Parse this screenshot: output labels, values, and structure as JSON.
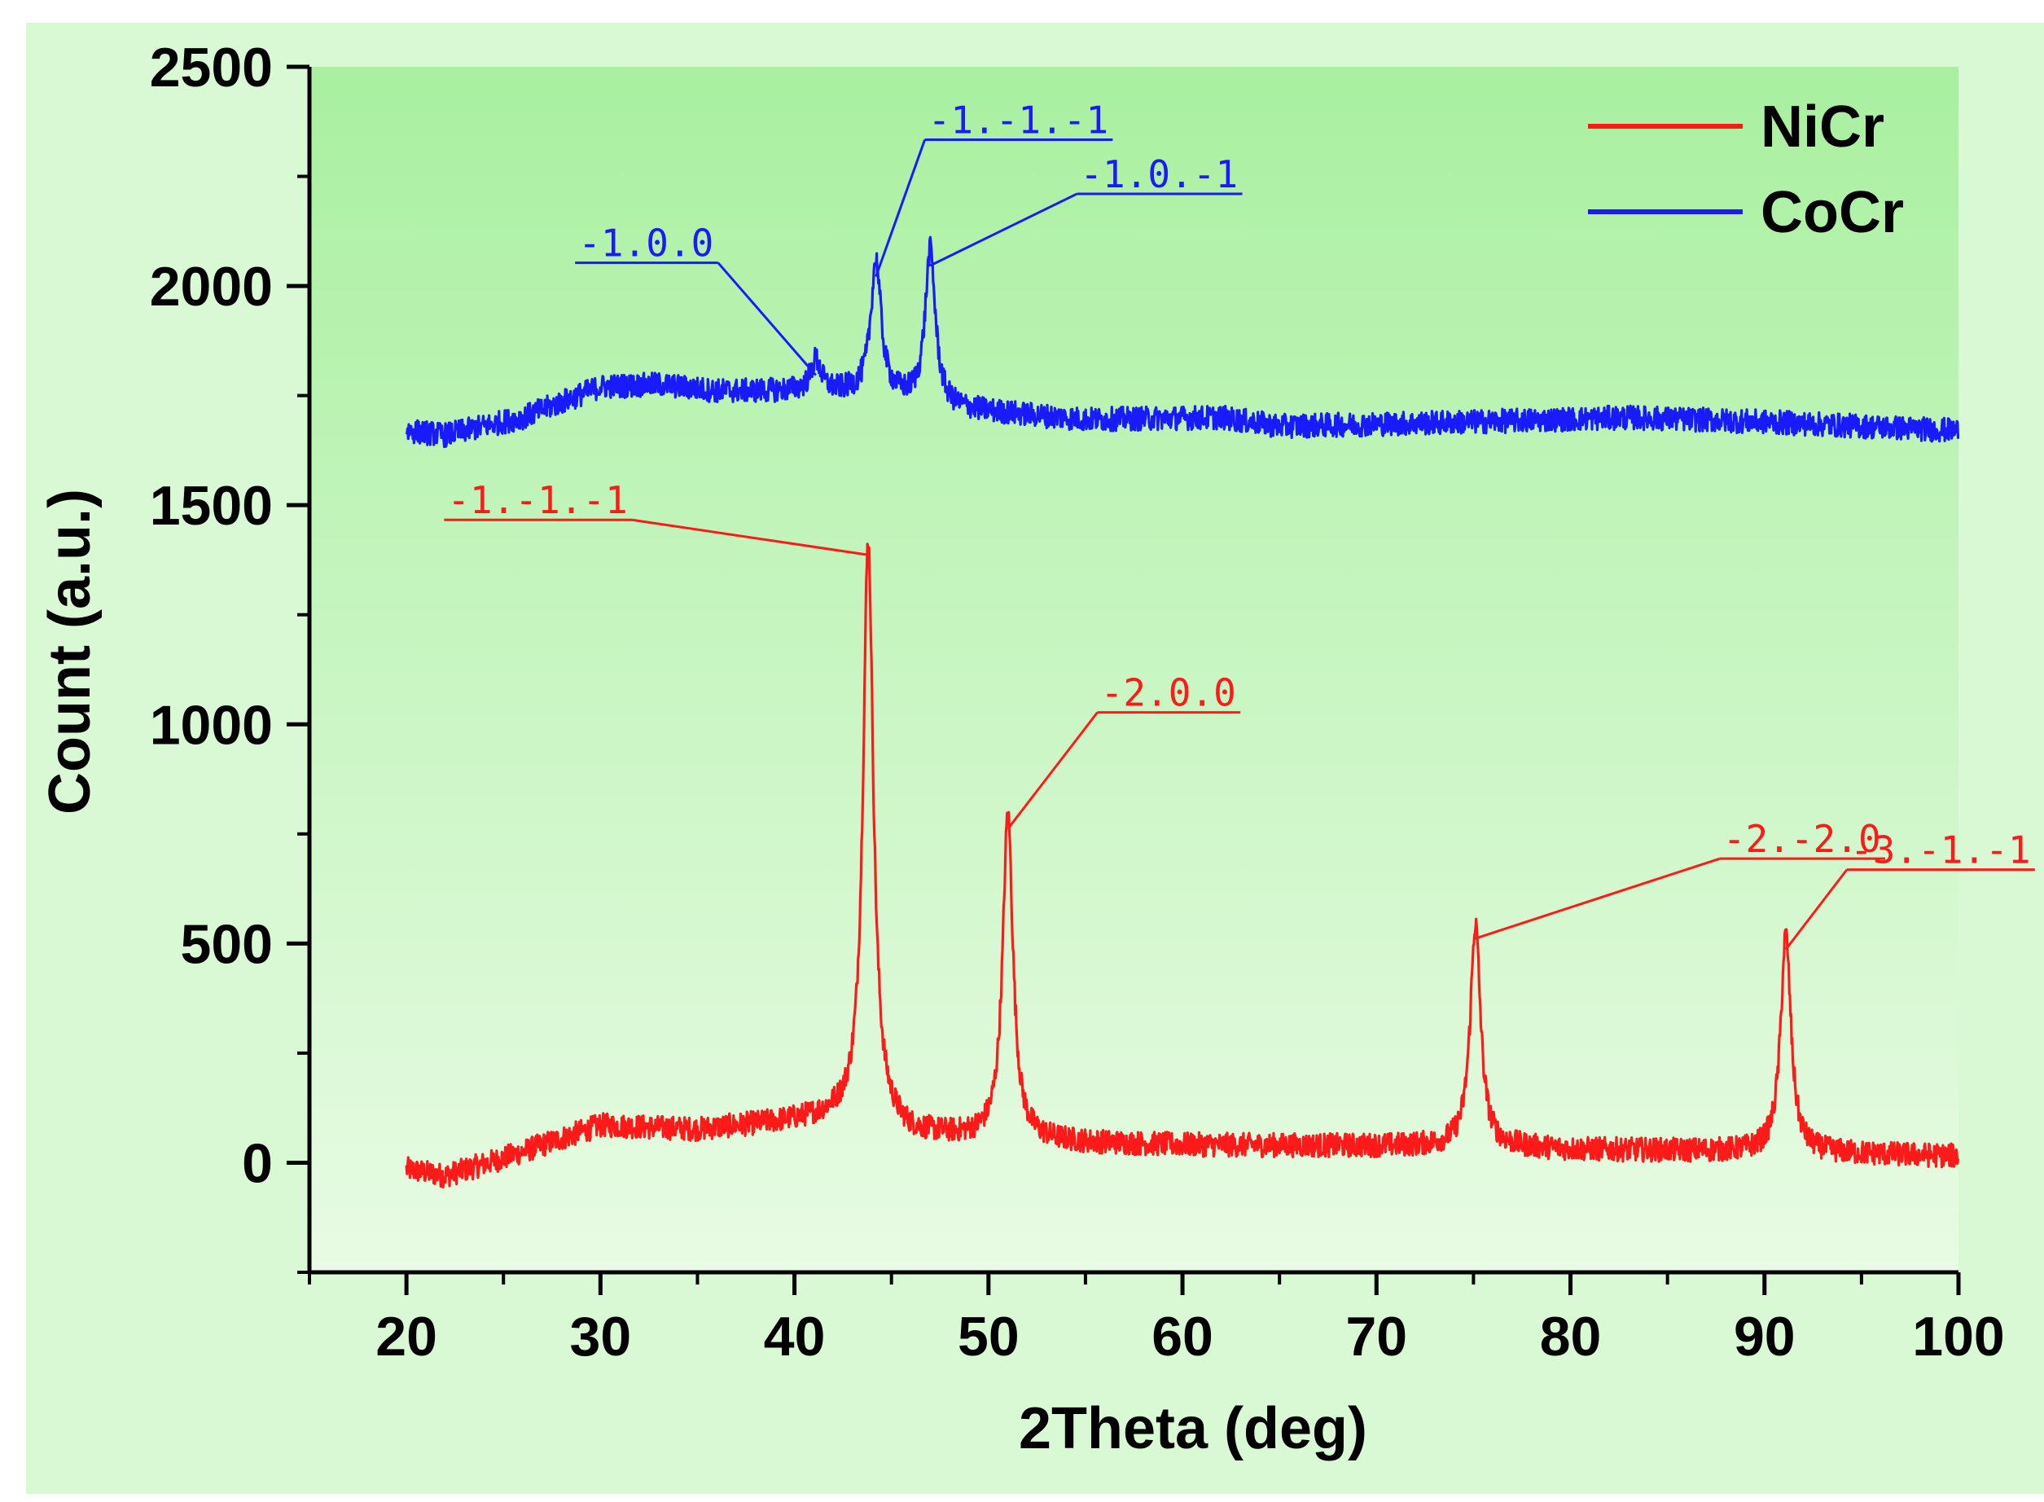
{
  "chart_data": {
    "type": "line",
    "xlabel": "2Theta (deg)",
    "ylabel": "Count (a.u.)",
    "xlim": [
      15,
      100
    ],
    "ylim": [
      -250,
      2500
    ],
    "xticks": [
      20,
      30,
      40,
      50,
      60,
      70,
      80,
      90,
      100
    ],
    "yticks": [
      0,
      500,
      1000,
      1500,
      2000,
      2500
    ],
    "grid": false,
    "legend_position": "top-right",
    "colors": {
      "background_outer": "#d9f8d4",
      "plot_top": "#a9f0a0",
      "plot_bottom": "#e8fbe4"
    },
    "series": [
      {
        "name": "NiCr",
        "color": "#ff1a1a",
        "x_range": [
          20,
          100
        ],
        "baseline": [
          [
            20,
            -15
          ],
          [
            22,
            -30
          ],
          [
            25,
            10
          ],
          [
            30,
            85
          ],
          [
            35,
            75
          ],
          [
            40,
            95
          ],
          [
            42,
            105
          ],
          [
            44,
            95
          ],
          [
            46,
            65
          ],
          [
            50,
            55
          ],
          [
            55,
            45
          ],
          [
            60,
            40
          ],
          [
            70,
            38
          ],
          [
            75,
            38
          ],
          [
            80,
            30
          ],
          [
            90,
            25
          ],
          [
            95,
            20
          ],
          [
            100,
            15
          ]
        ],
        "peaks": [
          {
            "x": 43.8,
            "y": 1420,
            "label": "-1.-1.-1"
          },
          {
            "x": 51.0,
            "y": 795,
            "label": "-2.0.0"
          },
          {
            "x": 75.1,
            "y": 545,
            "label": "-2.-2.0"
          },
          {
            "x": 91.1,
            "y": 520,
            "label": "-3.-1.-1"
          }
        ]
      },
      {
        "name": "CoCr",
        "color": "#1a1aff",
        "x_range": [
          20,
          100
        ],
        "baseline": [
          [
            20,
            1670
          ],
          [
            22,
            1660
          ],
          [
            26,
            1700
          ],
          [
            30,
            1770
          ],
          [
            33,
            1775
          ],
          [
            36,
            1760
          ],
          [
            40,
            1760
          ],
          [
            44,
            1755
          ],
          [
            48,
            1720
          ],
          [
            55,
            1695
          ],
          [
            62,
            1700
          ],
          [
            65,
            1680
          ],
          [
            75,
            1690
          ],
          [
            83,
            1700
          ],
          [
            90,
            1690
          ],
          [
            100,
            1670
          ]
        ],
        "peaks": [
          {
            "x": 41.1,
            "y": 1830,
            "label": "-1.0.0"
          },
          {
            "x": 44.2,
            "y": 2055,
            "label": "-1.-1.-1"
          },
          {
            "x": 47.0,
            "y": 2080,
            "label": "-1.0.-1"
          }
        ]
      }
    ]
  }
}
